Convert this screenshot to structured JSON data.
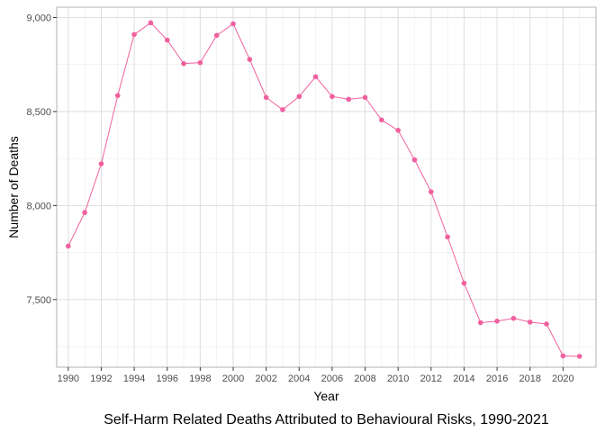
{
  "chart_data": {
    "type": "line",
    "caption": "Self-Harm Related Deaths Attributed to Behavioural Risks, 1990-2021",
    "xlabel": "Year",
    "ylabel": "Number of Deaths",
    "x": [
      1990,
      1991,
      1992,
      1993,
      1994,
      1995,
      1996,
      1997,
      1998,
      1999,
      2000,
      2001,
      2002,
      2003,
      2004,
      2005,
      2006,
      2007,
      2008,
      2009,
      2010,
      2011,
      2012,
      2013,
      2014,
      2015,
      2016,
      2017,
      2018,
      2019,
      2020,
      2021
    ],
    "series": [
      {
        "values": [
          7784,
          7963,
          8222,
          8585,
          8910,
          8972,
          8880,
          8755,
          8760,
          8905,
          8967,
          8777,
          8575,
          8510,
          8580,
          8685,
          8580,
          8565,
          8575,
          8455,
          8400,
          8243,
          8073,
          7833,
          7587,
          7377,
          7385,
          7400,
          7380,
          7370,
          7200,
          7198
        ],
        "color": "#f0609e"
      }
    ],
    "xlim": [
      1989.3,
      2022.0
    ],
    "ylim": [
      7140,
      9055
    ],
    "x_ticks": [
      1990,
      1992,
      1994,
      1996,
      1998,
      2000,
      2002,
      2004,
      2006,
      2008,
      2010,
      2012,
      2014,
      2016,
      2018,
      2020
    ],
    "x_tick_labels": [
      "1990",
      "1992",
      "1994",
      "1996",
      "1998",
      "2000",
      "2002",
      "2004",
      "2006",
      "2008",
      "2010",
      "2012",
      "2014",
      "2016",
      "2018",
      "2020"
    ],
    "y_ticks": [
      7500,
      8000,
      8500,
      9000
    ],
    "y_tick_labels": [
      "7,500",
      "8,000",
      "8,500",
      "9,000"
    ],
    "grid": true,
    "theme": "light",
    "colors": {
      "panel_border": "#b3b3b3",
      "grid_major": "#dedede",
      "grid_minor": "#ececec",
      "tick_text": "#4d4d4d"
    }
  }
}
